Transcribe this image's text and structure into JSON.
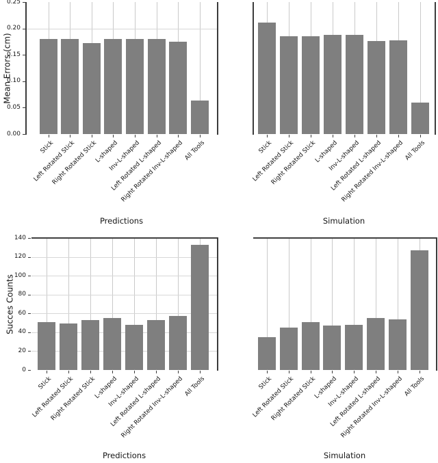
{
  "page": {
    "background": "#ffffff"
  },
  "colors": {
    "bar_fill": "#7f7f7f",
    "grid_light": "#c9c9c9",
    "grid_horizontal": "#d7d7d7",
    "rule_dark": "#3f3f3f",
    "spine": "#3b3b3b",
    "text": "#151515"
  },
  "chart_data": [
    {
      "id": "mean-errors-predictions",
      "type": "bar",
      "title": "",
      "xlabel": "Predictions",
      "ylabel": "Mean Errors (cm)",
      "ylim": [
        0,
        0.25
      ],
      "grid": {
        "vertical": true,
        "horizontal_values": [
          0.2
        ],
        "top_rule": false
      },
      "yticks": {
        "show": true,
        "values": [
          0.0,
          0.05,
          0.1,
          0.15,
          0.2,
          0.25
        ],
        "labels": [
          "0.00",
          "0.05",
          "0.10",
          "0.15",
          "0.20",
          "0.25"
        ]
      },
      "categories": [
        "Stick",
        "Left Rotated Stick",
        "Right Rotated Stick",
        "L-shaped",
        "Inv-L-shaped",
        "Left Rotated L-shaped",
        "Right Rotated Inv-L-shaped",
        "All Tools"
      ],
      "values": [
        0.18,
        0.18,
        0.172,
        0.18,
        0.18,
        0.18,
        0.175,
        0.063
      ]
    },
    {
      "id": "mean-errors-simulation",
      "type": "bar",
      "title": "",
      "xlabel": "Simulation",
      "ylabel": "",
      "ylim": [
        0,
        0.25
      ],
      "grid": {
        "vertical": true,
        "horizontal_values": [],
        "top_rule": false
      },
      "yticks": {
        "show": false,
        "values": [],
        "labels": []
      },
      "categories": [
        "Stick",
        "Left Rotated Stick",
        "Right Rotated Stick",
        "L-shaped",
        "Inv-L-shaped",
        "Left Rotated L-shaped",
        "Right Rotated Inv-L-shaped",
        "All Tools"
      ],
      "values": [
        0.211,
        0.185,
        0.185,
        0.188,
        0.188,
        0.176,
        0.177,
        0.059
      ]
    },
    {
      "id": "success-counts-predictions",
      "type": "bar",
      "title": "",
      "xlabel": "Predictions",
      "ylabel": "Succes Counts",
      "ylim": [
        0,
        140
      ],
      "grid": {
        "vertical": true,
        "horizontal_values": [
          20,
          40,
          60,
          80,
          100,
          120
        ],
        "top_rule": true
      },
      "yticks": {
        "show": true,
        "values": [
          0,
          20,
          40,
          60,
          80,
          100,
          120,
          140
        ],
        "labels": [
          "0",
          "20",
          "40",
          "60",
          "80",
          "100",
          "120",
          "140"
        ]
      },
      "categories": [
        "Stick",
        "Left Rotated Stick",
        "Right Rotated Stick",
        "L-shaped",
        "Inv-L-shaped",
        "Left Rotated L-shaped",
        "Right Rotated Inv-L-shaped",
        "All Tools"
      ],
      "values": [
        51,
        49,
        53,
        55,
        48,
        53,
        57,
        133
      ]
    },
    {
      "id": "success-counts-simulation",
      "type": "bar",
      "title": "",
      "xlabel": "Simulation",
      "ylabel": "",
      "ylim": [
        0,
        140
      ],
      "grid": {
        "vertical": true,
        "horizontal_values": [],
        "top_rule": true
      },
      "yticks": {
        "show": false,
        "values": [],
        "labels": []
      },
      "categories": [
        "Stick",
        "Left Rotated Stick",
        "Right Rotated Stick",
        "L-shaped",
        "Inv-L-shaped",
        "Left Rotated L-shaped",
        "Right Rotated Inv-L-shaped",
        "All Tools"
      ],
      "values": [
        35,
        45,
        51,
        47,
        48,
        55,
        54,
        127
      ]
    }
  ]
}
